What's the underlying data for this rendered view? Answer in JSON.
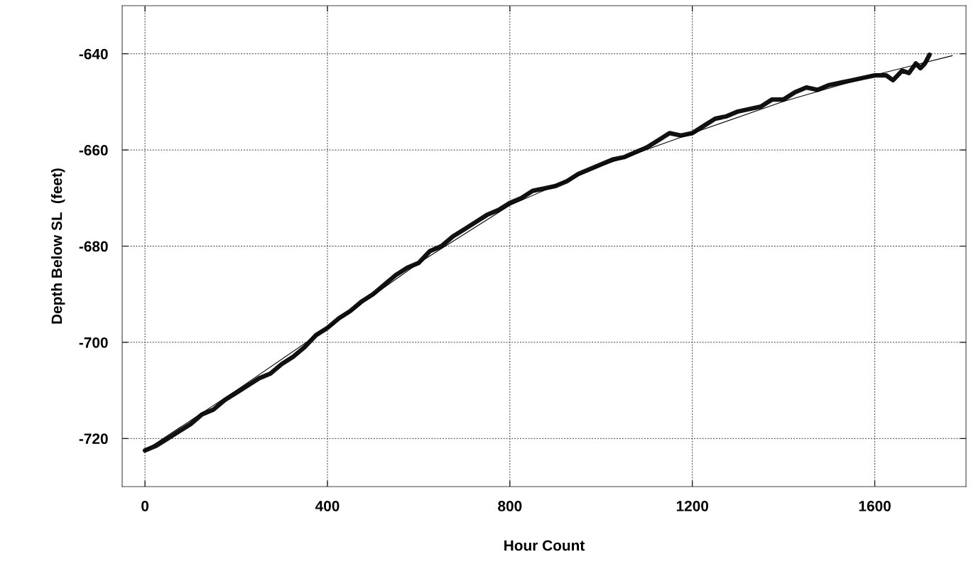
{
  "chart_data": {
    "type": "line",
    "xlabel": "Hour Count",
    "ylabel": "Depth Below SL  (feet)",
    "xlim": [
      -50,
      1800
    ],
    "xticks": [
      0,
      400,
      800,
      1200,
      1600
    ],
    "ylim": [
      -730,
      -630
    ],
    "yticks": [
      -720,
      -700,
      -680,
      -660,
      -640
    ],
    "grid": true,
    "line_style": "solid",
    "series": [
      {
        "color": "#111111",
        "x": [
          0,
          25,
          50,
          75,
          100,
          125,
          150,
          175,
          200,
          225,
          250,
          275,
          300,
          325,
          350,
          375,
          400,
          425,
          450,
          475,
          500,
          525,
          550,
          575,
          600,
          625,
          650,
          675,
          700,
          725,
          750,
          775,
          800,
          825,
          850,
          875,
          900,
          925,
          950,
          975,
          1000,
          1025,
          1050,
          1075,
          1100,
          1125,
          1150,
          1175,
          1200,
          1225,
          1250,
          1275,
          1300,
          1325,
          1350,
          1375,
          1400,
          1425,
          1450,
          1475,
          1500,
          1525,
          1550,
          1575,
          1600,
          1625,
          1640,
          1660,
          1675,
          1690,
          1700,
          1710,
          1720
        ],
        "values": [
          -722.5,
          -721.5,
          -720.0,
          -718.5,
          -717.0,
          -715.0,
          -714.0,
          -712.0,
          -710.5,
          -709.0,
          -707.5,
          -706.5,
          -704.5,
          -703.0,
          -701.0,
          -698.5,
          -697.0,
          -695.0,
          -693.5,
          -691.5,
          -690.0,
          -688.0,
          -686.0,
          -684.5,
          -683.5,
          -681.0,
          -680.0,
          -678.0,
          -676.5,
          -675.0,
          -673.5,
          -672.5,
          -671.0,
          -670.0,
          -668.5,
          -668.0,
          -667.5,
          -666.5,
          -665.0,
          -664.0,
          -663.0,
          -662.0,
          -661.5,
          -660.5,
          -659.5,
          -658.0,
          -656.5,
          -657.0,
          -656.5,
          -655.0,
          -653.5,
          -653.0,
          -652.0,
          -651.5,
          -651.0,
          -649.5,
          -649.5,
          -648.0,
          -647.0,
          -647.5,
          -646.5,
          -646.0,
          -645.5,
          -645.0,
          -644.5,
          -644.5,
          -645.5,
          -643.5,
          -644.0,
          -642.0,
          -643.0,
          -642.0,
          -640.2
        ]
      },
      {
        "color": "#000000",
        "x": [
          0,
          200,
          400,
          600,
          800,
          1000,
          1200,
          1400,
          1600,
          1770
        ],
        "values": [
          -722.5,
          -710.0,
          -697.0,
          -683.5,
          -671.5,
          -663.3,
          -656.5,
          -649.9,
          -644.4,
          -640.4
        ]
      }
    ]
  }
}
